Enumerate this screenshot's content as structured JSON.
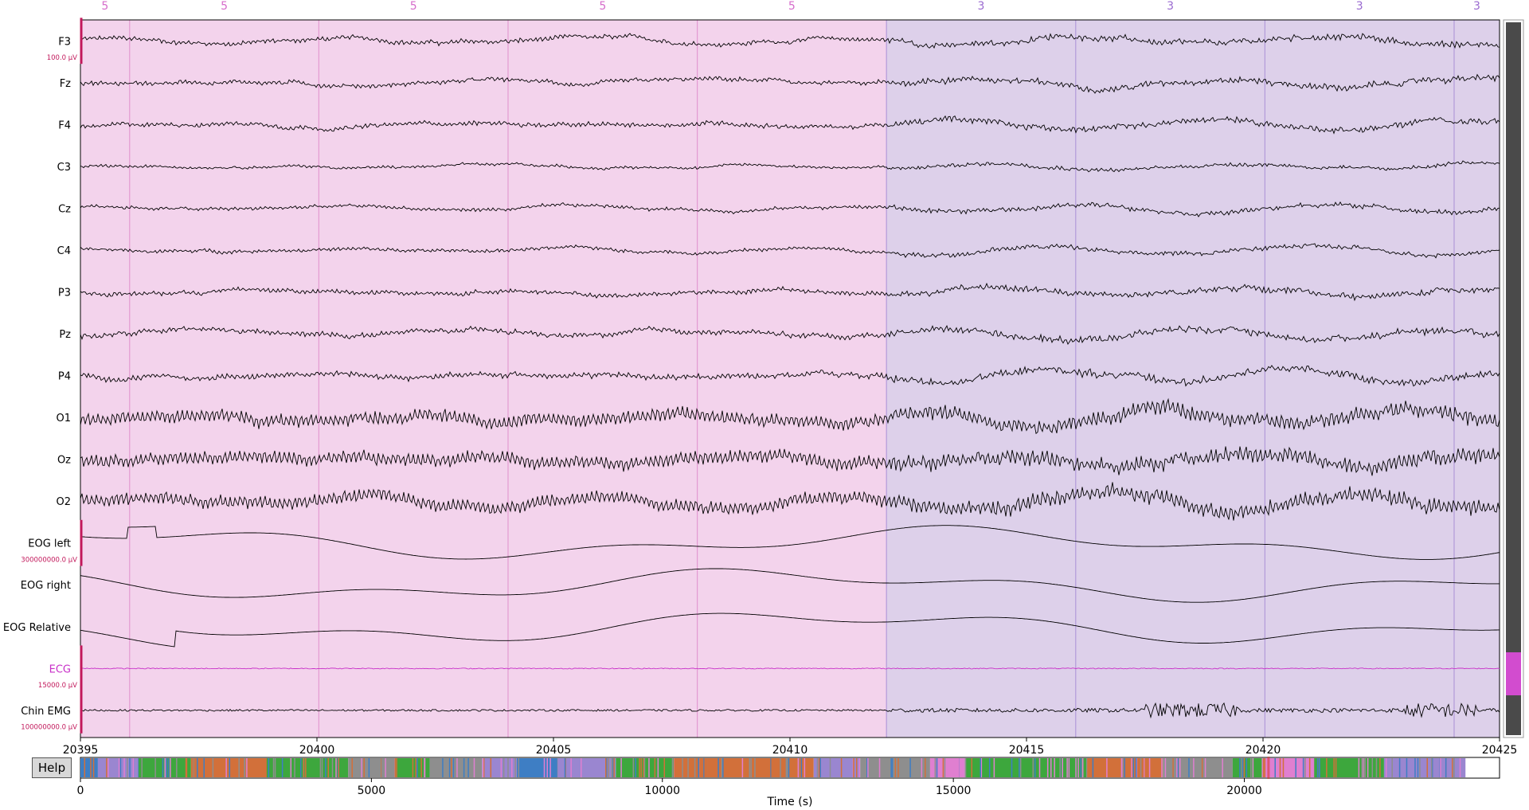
{
  "colors": {
    "segment_pink": "#f3d3ec",
    "segment_purple": "#ddd0ea",
    "pink_line": "#e39ad2",
    "purple_line": "#b29ad9",
    "label_pink": "#d66ccb",
    "label_purple": "#9a6ad0",
    "trace": "#000000",
    "ecg_trace": "#c830c8",
    "scale_bar": "#c2185b",
    "scrollbar_track": "#4a4a4a",
    "scrollbar_thumb": "#d24ccf",
    "overview_green": "#3da73d",
    "overview_orange": "#d2703a",
    "overview_blue": "#3e7ec4",
    "overview_gray": "#8e8e8e",
    "overview_pink": "#e07fd0",
    "overview_purple": "#9a86d0"
  },
  "channels": [
    {
      "name": "F3",
      "scale": "100.0 µV",
      "amp": 0.8
    },
    {
      "name": "Fz",
      "scale": "",
      "amp": 0.8
    },
    {
      "name": "F4",
      "scale": "",
      "amp": 0.8
    },
    {
      "name": "C3",
      "scale": "",
      "amp": 0.5
    },
    {
      "name": "Cz",
      "scale": "",
      "amp": 0.6
    },
    {
      "name": "C4",
      "scale": "",
      "amp": 0.6
    },
    {
      "name": "P3",
      "scale": "",
      "amp": 0.8
    },
    {
      "name": "Pz",
      "scale": "",
      "amp": 0.9
    },
    {
      "name": "P4",
      "scale": "",
      "amp": 1.0
    },
    {
      "name": "O1",
      "scale": "",
      "amp": 1.3
    },
    {
      "name": "Oz",
      "scale": "",
      "amp": 1.3
    },
    {
      "name": "O2",
      "scale": "",
      "amp": 1.3
    },
    {
      "name": "EOG left",
      "scale": "300000000.0 µV",
      "amp": 0.7
    },
    {
      "name": "EOG right",
      "scale": "",
      "amp": 0.7
    },
    {
      "name": "EOG Relative",
      "scale": "",
      "amp": 1.0
    },
    {
      "name": "ECG",
      "scale": "15000.0 µV",
      "amp": 0.05
    },
    {
      "name": "Chin EMG",
      "scale": "100000000.0 µV",
      "amp": 0.2
    }
  ],
  "segments": [
    {
      "stage": "5",
      "start": 20395,
      "end": 20396.04,
      "color": "pink"
    },
    {
      "stage": "5",
      "start": 20396.04,
      "end": 20400.04,
      "color": "pink"
    },
    {
      "stage": "5",
      "start": 20400.04,
      "end": 20404.04,
      "color": "pink"
    },
    {
      "stage": "5",
      "start": 20404.04,
      "end": 20408.04,
      "color": "pink"
    },
    {
      "stage": "5",
      "start": 20408.04,
      "end": 20412.04,
      "color": "pink"
    },
    {
      "stage": "3",
      "start": 20412.04,
      "end": 20416.04,
      "color": "purple"
    },
    {
      "stage": "3",
      "start": 20416.04,
      "end": 20420.04,
      "color": "purple"
    },
    {
      "stage": "3",
      "start": 20420.04,
      "end": 20424.04,
      "color": "purple"
    },
    {
      "stage": "3",
      "start": 20424.04,
      "end": 20425,
      "color": "purple"
    }
  ],
  "time_axis": {
    "start": 20395,
    "end": 20425,
    "ticks": [
      "20395",
      "20400",
      "20405",
      "20410",
      "20415",
      "20420",
      "20425"
    ]
  },
  "overview": {
    "ticks": [
      "0",
      "5000",
      "10000",
      "15000",
      "20000"
    ],
    "xlabel": "Time (s)",
    "max": 23800,
    "view_start": 20395,
    "bands": [
      {
        "from": 0,
        "to": 300,
        "c": "overview_blue"
      },
      {
        "from": 300,
        "to": 1000,
        "c": "overview_purple"
      },
      {
        "from": 1000,
        "to": 1900,
        "c": "overview_green"
      },
      {
        "from": 1900,
        "to": 3200,
        "c": "overview_orange"
      },
      {
        "from": 3200,
        "to": 4600,
        "c": "overview_green"
      },
      {
        "from": 4600,
        "to": 5400,
        "c": "overview_gray"
      },
      {
        "from": 5400,
        "to": 6000,
        "c": "overview_green"
      },
      {
        "from": 6000,
        "to": 6900,
        "c": "overview_gray"
      },
      {
        "from": 6900,
        "to": 7500,
        "c": "overview_purple"
      },
      {
        "from": 7500,
        "to": 8200,
        "c": "overview_blue"
      },
      {
        "from": 8200,
        "to": 9200,
        "c": "overview_purple"
      },
      {
        "from": 9200,
        "to": 10200,
        "c": "overview_green"
      },
      {
        "from": 10200,
        "to": 12600,
        "c": "overview_orange"
      },
      {
        "from": 12600,
        "to": 13400,
        "c": "overview_purple"
      },
      {
        "from": 13400,
        "to": 14600,
        "c": "overview_gray"
      },
      {
        "from": 14600,
        "to": 15200,
        "c": "overview_pink"
      },
      {
        "from": 15200,
        "to": 17300,
        "c": "overview_green"
      },
      {
        "from": 17300,
        "to": 18600,
        "c": "overview_orange"
      },
      {
        "from": 18600,
        "to": 19800,
        "c": "overview_gray"
      },
      {
        "from": 19800,
        "to": 20300,
        "c": "overview_green"
      },
      {
        "from": 20300,
        "to": 21200,
        "c": "overview_pink"
      },
      {
        "from": 21200,
        "to": 22400,
        "c": "overview_green"
      },
      {
        "from": 22400,
        "to": 23800,
        "c": "overview_purple"
      }
    ]
  },
  "help_label": "Help"
}
